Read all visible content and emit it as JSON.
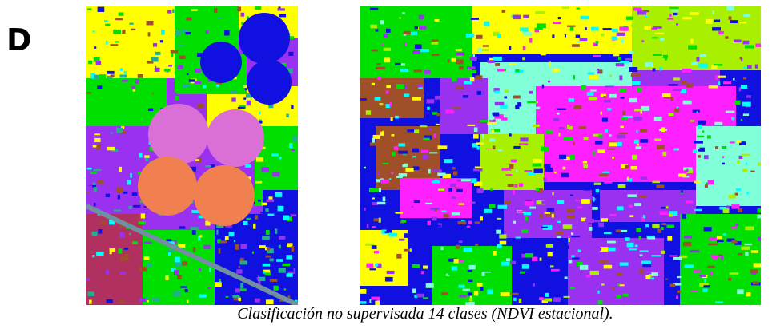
{
  "panel_label": "D",
  "caption": "Clasificación no supervisada 14 clases (NDVI estacional)."
}
